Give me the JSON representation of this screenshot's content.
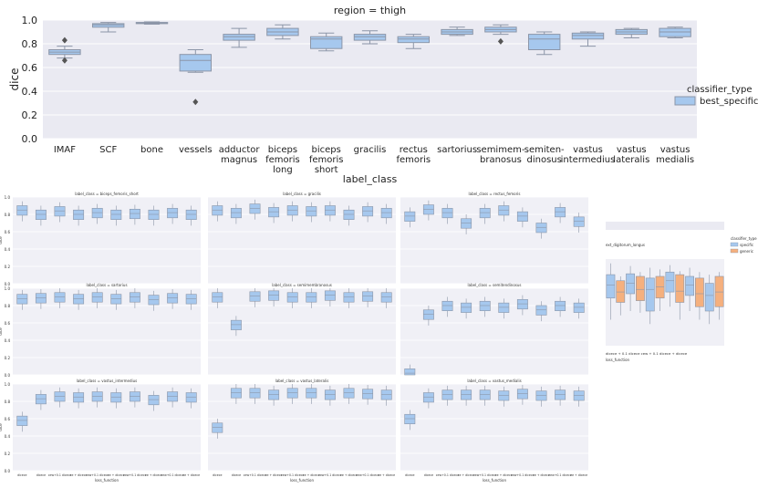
{
  "main_chart": {
    "type": "box",
    "title": "region = thigh",
    "ylabel": "dice",
    "xlabel": "label_class",
    "ylim": [
      0.0,
      1.0
    ],
    "yticks": [
      "0.0",
      "0.2",
      "0.4",
      "0.6",
      "0.8",
      "1.0"
    ],
    "legend_title": "classifier_type",
    "legend_entries": [
      {
        "name": "best_specific",
        "color": "#a6c8ee"
      }
    ],
    "categories": [
      {
        "label": [
          "IMAF"
        ],
        "q1": 0.71,
        "median": 0.73,
        "q3": 0.75,
        "wlo": 0.68,
        "whi": 0.78,
        "outliers": [
          0.83,
          0.66
        ]
      },
      {
        "label": [
          "SCF"
        ],
        "q1": 0.94,
        "median": 0.96,
        "q3": 0.97,
        "wlo": 0.9,
        "whi": 0.98,
        "outliers": []
      },
      {
        "label": [
          "bone"
        ],
        "q1": 0.97,
        "median": 0.975,
        "q3": 0.98,
        "wlo": 0.965,
        "whi": 0.985,
        "outliers": []
      },
      {
        "label": [
          "vessels"
        ],
        "q1": 0.57,
        "median": 0.66,
        "q3": 0.71,
        "wlo": 0.56,
        "whi": 0.75,
        "outliers": [
          0.31
        ]
      },
      {
        "label": [
          "adductor",
          "magnus"
        ],
        "q1": 0.83,
        "median": 0.86,
        "q3": 0.88,
        "wlo": 0.77,
        "whi": 0.93,
        "outliers": []
      },
      {
        "label": [
          "biceps",
          "femoris",
          "long"
        ],
        "q1": 0.87,
        "median": 0.9,
        "q3": 0.93,
        "wlo": 0.84,
        "whi": 0.96,
        "outliers": []
      },
      {
        "label": [
          "biceps",
          "femoris",
          "short"
        ],
        "q1": 0.76,
        "median": 0.84,
        "q3": 0.86,
        "wlo": 0.74,
        "whi": 0.89,
        "outliers": []
      },
      {
        "label": [
          "gracilis"
        ],
        "q1": 0.83,
        "median": 0.86,
        "q3": 0.88,
        "wlo": 0.8,
        "whi": 0.91,
        "outliers": []
      },
      {
        "label": [
          "rectus",
          "femoris"
        ],
        "q1": 0.81,
        "median": 0.84,
        "q3": 0.86,
        "wlo": 0.76,
        "whi": 0.88,
        "outliers": []
      },
      {
        "label": [
          "sartorius"
        ],
        "q1": 0.88,
        "median": 0.9,
        "q3": 0.92,
        "wlo": 0.87,
        "whi": 0.94,
        "outliers": []
      },
      {
        "label": [
          "semimem-",
          "branosus"
        ],
        "q1": 0.9,
        "median": 0.92,
        "q3": 0.94,
        "wlo": 0.88,
        "whi": 0.96,
        "outliers": [
          0.82
        ]
      },
      {
        "label": [
          "semiten-",
          "dinosus"
        ],
        "q1": 0.75,
        "median": 0.84,
        "q3": 0.88,
        "wlo": 0.71,
        "whi": 0.9,
        "outliers": []
      },
      {
        "label": [
          "vastus",
          "intermedius"
        ],
        "q1": 0.84,
        "median": 0.87,
        "q3": 0.89,
        "wlo": 0.78,
        "whi": 0.9,
        "outliers": []
      },
      {
        "label": [
          "vastus",
          "lateralis"
        ],
        "q1": 0.88,
        "median": 0.9,
        "q3": 0.92,
        "wlo": 0.85,
        "whi": 0.93,
        "outliers": []
      },
      {
        "label": [
          "vastus",
          "medialis"
        ],
        "q1": 0.86,
        "median": 0.9,
        "q3": 0.93,
        "wlo": 0.85,
        "whi": 0.94,
        "outliers": []
      }
    ]
  },
  "chart_data": [
    {
      "type": "box",
      "title": "region = thigh",
      "xlabel": "label_class",
      "ylabel": "dice",
      "ylim": [
        0.0,
        1.0
      ],
      "categories": [
        "IMAF",
        "SCF",
        "bone",
        "vessels",
        "adductor magnus",
        "biceps femoris long",
        "biceps femoris short",
        "gracilis",
        "rectus femoris",
        "sartorius",
        "semimem-branosus",
        "semiten-dinosus",
        "vastus intermedius",
        "vastus lateralis",
        "vastus medialis"
      ],
      "series": [
        {
          "name": "best_specific",
          "medians": [
            0.73,
            0.96,
            0.975,
            0.66,
            0.86,
            0.9,
            0.84,
            0.86,
            0.84,
            0.9,
            0.92,
            0.84,
            0.87,
            0.9,
            0.9
          ]
        }
      ]
    },
    {
      "type": "box",
      "grid": "3x3 small multiples",
      "ylabel": "dice",
      "xlabel": "loss_function",
      "panels": [
        "label_class = biceps_femoris_short",
        "label_class = gracilis",
        "label_class = rectus_femoris",
        "label_class = sartorius",
        "label_class = semimembranosus",
        "label_class = semitendinosus",
        "label_class = vastus_intermedius",
        "label_class = vastus_lateralis",
        "label_class = vastus_medialis"
      ]
    },
    {
      "type": "box",
      "title": "ext_digitorum_longus",
      "legend_title": "classifier_type",
      "legend_entries": [
        "specific",
        "generic"
      ]
    }
  ],
  "small_grid": {
    "yticks": [
      "1.0",
      "0.8",
      "0.6",
      "0.4",
      "0.2",
      "0.0"
    ],
    "ylabel": "dice",
    "xlabel": "loss_function",
    "xticks": [
      "dice$_{ce}$",
      "dice$_{ce}$",
      "ce$_{w}$+0.1 dice$_{ce}$",
      "ce + dice$_{ce}$",
      "ce$_{w}$+0.1 dice$_{ce}$",
      "ce + dice$_{ce}$",
      "ce$_{w}$+0.1 dice$_{ce}$",
      "ce + dice$_{ce}$",
      "ce$_{w}$+0.1 dice$_{ce}$",
      "ce + dice$_{ce}$"
    ],
    "panels": [
      {
        "title": "label_class = biceps_femoris_short",
        "medians": [
          0.85,
          0.8,
          0.84,
          0.8,
          0.82,
          0.8,
          0.81,
          0.8,
          0.82,
          0.8
        ]
      },
      {
        "title": "label_class = gracilis",
        "medians": [
          0.85,
          0.82,
          0.87,
          0.83,
          0.85,
          0.84,
          0.85,
          0.8,
          0.84,
          0.82
        ]
      },
      {
        "title": "label_class = rectus_femoris",
        "medians": [
          0.78,
          0.86,
          0.82,
          0.7,
          0.82,
          0.85,
          0.78,
          0.65,
          0.83,
          0.72
        ]
      },
      {
        "title": "label_class = sartorius",
        "medians": [
          0.88,
          0.89,
          0.9,
          0.88,
          0.9,
          0.88,
          0.9,
          0.87,
          0.89,
          0.88
        ]
      },
      {
        "title": "label_class = semimembranosus",
        "medians": [
          0.9,
          0.58,
          0.91,
          0.92,
          0.9,
          0.9,
          0.92,
          0.9,
          0.91,
          0.9
        ]
      },
      {
        "title": "label_class = semitendinosus",
        "medians": [
          0.02,
          0.7,
          0.8,
          0.78,
          0.8,
          0.78,
          0.82,
          0.75,
          0.8,
          0.78
        ]
      },
      {
        "title": "label_class = vastus_intermedius",
        "medians": [
          0.58,
          0.83,
          0.86,
          0.85,
          0.86,
          0.85,
          0.86,
          0.82,
          0.86,
          0.85
        ]
      },
      {
        "title": "label_class = vastus_lateralis",
        "medians": [
          0.5,
          0.9,
          0.9,
          0.88,
          0.9,
          0.9,
          0.88,
          0.9,
          0.89,
          0.88
        ]
      },
      {
        "title": "label_class = vastus_medialis",
        "medians": [
          0.6,
          0.85,
          0.88,
          0.88,
          0.88,
          0.87,
          0.89,
          0.87,
          0.88,
          0.87
        ]
      }
    ]
  },
  "side_chart": {
    "title": "ext_digitorum_longus",
    "legend_title": "classifier_type",
    "legend_entries": [
      {
        "name": "specific",
        "color": "#a6c8ee"
      },
      {
        "name": "generic",
        "color": "#f5b07e"
      }
    ],
    "xlabel": "loss_function",
    "xticks_text": "dice$_{ce}$ + 0.1 dice$_{ce}$   ce$_{w}$ + 0.1 dice$_{ce}$ + dice$_{ce}$",
    "boxes": [
      {
        "cls": "specific",
        "q1": 0.55,
        "median": 0.7,
        "q3": 0.82,
        "wlo": 0.3,
        "whi": 0.95
      },
      {
        "cls": "generic",
        "q1": 0.5,
        "median": 0.62,
        "q3": 0.75,
        "wlo": 0.35,
        "whi": 0.8
      },
      {
        "cls": "specific",
        "q1": 0.6,
        "median": 0.72,
        "q3": 0.83,
        "wlo": 0.4,
        "whi": 0.92
      },
      {
        "cls": "generic",
        "q1": 0.52,
        "median": 0.65,
        "q3": 0.8,
        "wlo": 0.38,
        "whi": 0.85
      },
      {
        "cls": "specific",
        "q1": 0.4,
        "median": 0.65,
        "q3": 0.78,
        "wlo": 0.25,
        "whi": 0.9
      },
      {
        "cls": "generic",
        "q1": 0.55,
        "median": 0.68,
        "q3": 0.8,
        "wlo": 0.4,
        "whi": 0.88
      },
      {
        "cls": "specific",
        "q1": 0.62,
        "median": 0.75,
        "q3": 0.85,
        "wlo": 0.45,
        "whi": 0.93
      },
      {
        "cls": "generic",
        "q1": 0.5,
        "median": 0.63,
        "q3": 0.82,
        "wlo": 0.3,
        "whi": 0.86
      },
      {
        "cls": "specific",
        "q1": 0.58,
        "median": 0.7,
        "q3": 0.8,
        "wlo": 0.4,
        "whi": 0.9
      },
      {
        "cls": "generic",
        "q1": 0.45,
        "median": 0.6,
        "q3": 0.78,
        "wlo": 0.3,
        "whi": 0.85
      },
      {
        "cls": "specific",
        "q1": 0.4,
        "median": 0.58,
        "q3": 0.72,
        "wlo": 0.25,
        "whi": 0.82
      },
      {
        "cls": "generic",
        "q1": 0.45,
        "median": 0.62,
        "q3": 0.8,
        "wlo": 0.3,
        "whi": 0.85
      }
    ]
  }
}
